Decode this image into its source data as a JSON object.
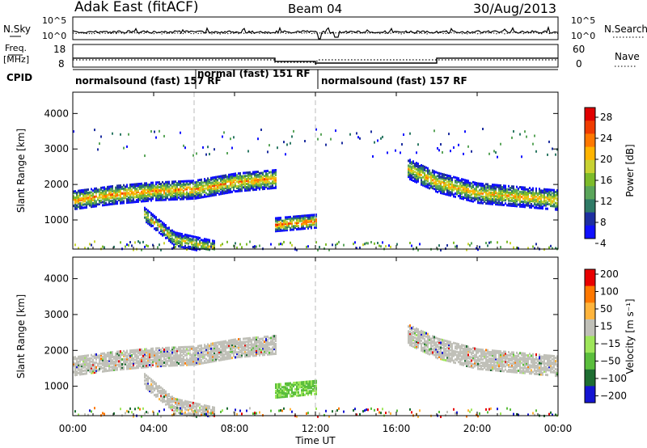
{
  "header": {
    "station": "Adak East (fitACF)",
    "beam": "Beam 04",
    "date": "30/Aug/2013"
  },
  "noise_panel": {
    "left_label": "N.Sky",
    "right_label": "N.Search",
    "left_ticks": [
      "10^5",
      "10^0"
    ],
    "right_ticks": [
      "10^5",
      "10^0"
    ]
  },
  "freq_panel": {
    "left_label": "Freq.",
    "left_unit": "[MHz]",
    "right_label": "Nave",
    "left_ticks": [
      "18",
      "8"
    ],
    "right_ticks": [
      "60",
      "0"
    ]
  },
  "cpid_panel": {
    "label": "CPID",
    "segments": [
      {
        "text": "normalsound (fast) 157 RF",
        "start_h": 0,
        "end_h": 6
      },
      {
        "text": "normal (fast) 151 RF",
        "start_h": 6,
        "end_h": 12
      },
      {
        "text": "normalsound (fast) 157 RF",
        "start_h": 12,
        "end_h": 24
      }
    ]
  },
  "x_axis": {
    "label": "Time UT",
    "ticks": [
      "00:00",
      "04:00",
      "08:00",
      "12:00",
      "16:00",
      "20:00",
      "00:00"
    ]
  },
  "power_panel": {
    "ylabel": "Slant Range [km]",
    "yticks": [
      "4000",
      "3000",
      "2000",
      "1000"
    ],
    "colorbar_label": "Power [dB]",
    "colorbar_ticks": [
      "28",
      "24",
      "20",
      "16",
      "12",
      "8",
      "4"
    ],
    "colors": [
      "#1010ff",
      "#1e2fa0",
      "#2f7a66",
      "#5aa55a",
      "#7dbb2a",
      "#c8d232",
      "#ffb400",
      "#ff7800",
      "#f03c00",
      "#e00000"
    ]
  },
  "velocity_panel": {
    "ylabel": "Slant Range [km]",
    "yticks": [
      "4000",
      "3000",
      "2000",
      "1000"
    ],
    "colorbar_label": "Velocity [m s⁻¹]",
    "colorbar_ticks": [
      "200",
      "100",
      "50",
      "15",
      "−15",
      "−50",
      "−100",
      "−200"
    ],
    "colors": [
      "#1414d2",
      "#1e6e32",
      "#5abe3c",
      "#9ee65a",
      "#c0c0b8",
      "#ffb43c",
      "#ff7800",
      "#e80000"
    ]
  },
  "chart_data": {
    "type": "heatmap",
    "title": "Adak East (fitACF)  Beam 04  30/Aug/2013",
    "xlabel": "Time UT",
    "ylabel": "Slant Range [km]",
    "xlim": [
      0,
      24
    ],
    "ylim": [
      180,
      4600
    ],
    "power_db_range": [
      0,
      30
    ],
    "velocity_range": [
      -200,
      200
    ],
    "freq_MHz_series": [
      {
        "start_h": 0,
        "end_h": 10,
        "value": 13.5
      },
      {
        "start_h": 10,
        "end_h": 12,
        "value": 11.5
      },
      {
        "start_h": 12,
        "end_h": 18,
        "value": 10.5
      },
      {
        "start_h": 18,
        "end_h": 24,
        "value": 13.5
      }
    ],
    "power_features": [
      {
        "name": "main band",
        "points": [
          [
            0,
            1600
          ],
          [
            2,
            1750
          ],
          [
            4,
            1850
          ],
          [
            6,
            1900
          ],
          [
            8,
            2100
          ],
          [
            10,
            2200
          ]
        ],
        "peak_db": 26
      },
      {
        "name": "lower sporadic echoes",
        "points": [
          [
            3.5,
            1200
          ],
          [
            5,
            500
          ],
          [
            7,
            250
          ]
        ],
        "peak_db": 22
      },
      {
        "name": "near-range echoes",
        "points": [
          [
            10,
            900
          ],
          [
            12,
            1000
          ]
        ],
        "peak_db": 28
      },
      {
        "name": "afternoon band",
        "points": [
          [
            16.5,
            2500
          ],
          [
            18,
            2100
          ],
          [
            20,
            1800
          ],
          [
            22,
            1700
          ],
          [
            24,
            1600
          ]
        ],
        "peak_db": 24
      }
    ]
  }
}
